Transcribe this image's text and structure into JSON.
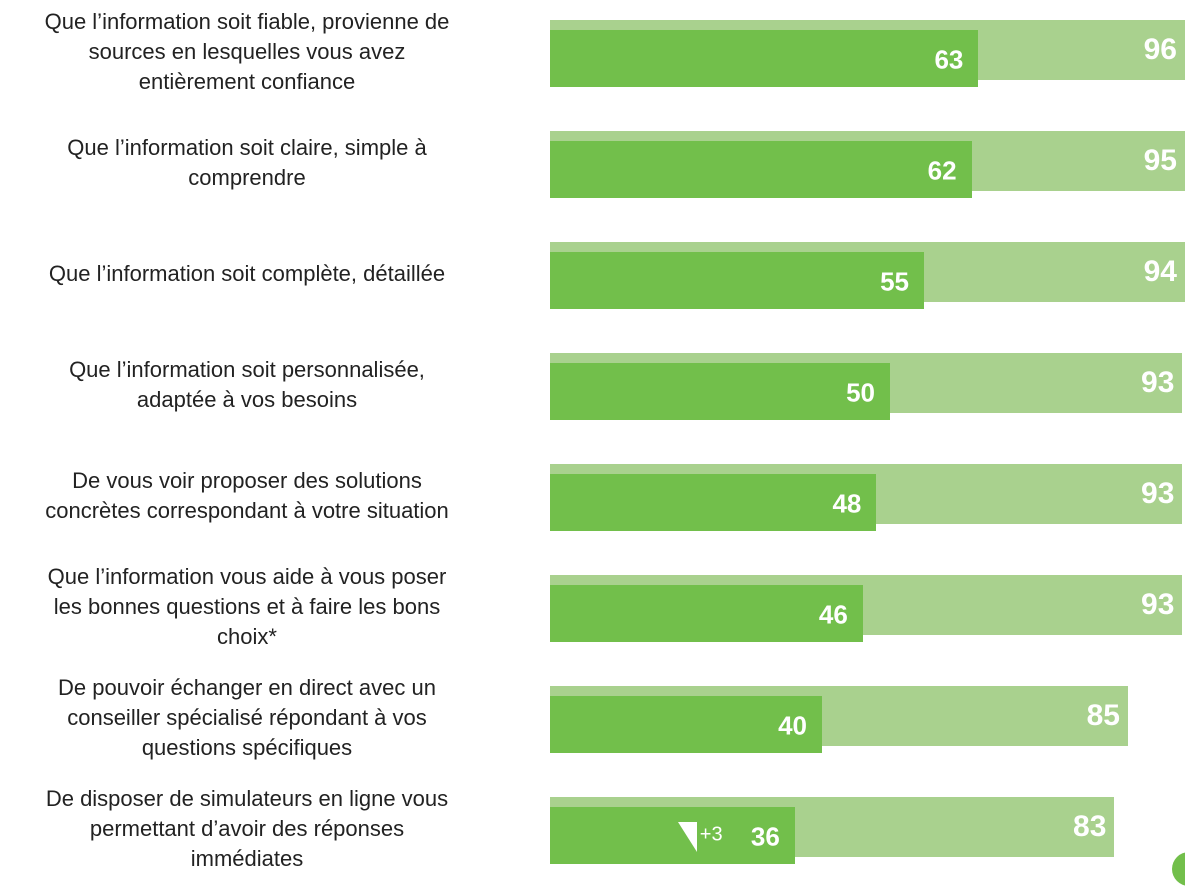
{
  "chart_data": {
    "type": "bar",
    "orientation": "horizontal",
    "categories": [
      "Que l’information soit fiable, provienne de\nsources en lesquelles vous avez\nentièrement confiance",
      "Que l’information soit claire, simple à\ncomprendre",
      "Que l’information soit complète, détaillée",
      "Que l’information soit personnalisée,\nadaptée à vos besoins",
      "De vous voir proposer des solutions\nconcrètes correspondant à votre situation",
      "Que l’information vous aide à vous poser\nles bonnes questions et à faire les bons\nchoix*",
      "De pouvoir échanger en direct avec un\nconseiller spécialisé répondant à vos\nquestions spécifiques",
      "De disposer de simulateurs en ligne vous\npermettant d’avoir des réponses\nimmédiates"
    ],
    "series": [
      {
        "color": "#a9d18e",
        "values": [
          96,
          95,
          94,
          93,
          93,
          93,
          85,
          83
        ]
      },
      {
        "color": "#72bf4b",
        "values": [
          63,
          62,
          55,
          50,
          48,
          46,
          40,
          36
        ]
      }
    ],
    "annotation": "+3"
  }
}
